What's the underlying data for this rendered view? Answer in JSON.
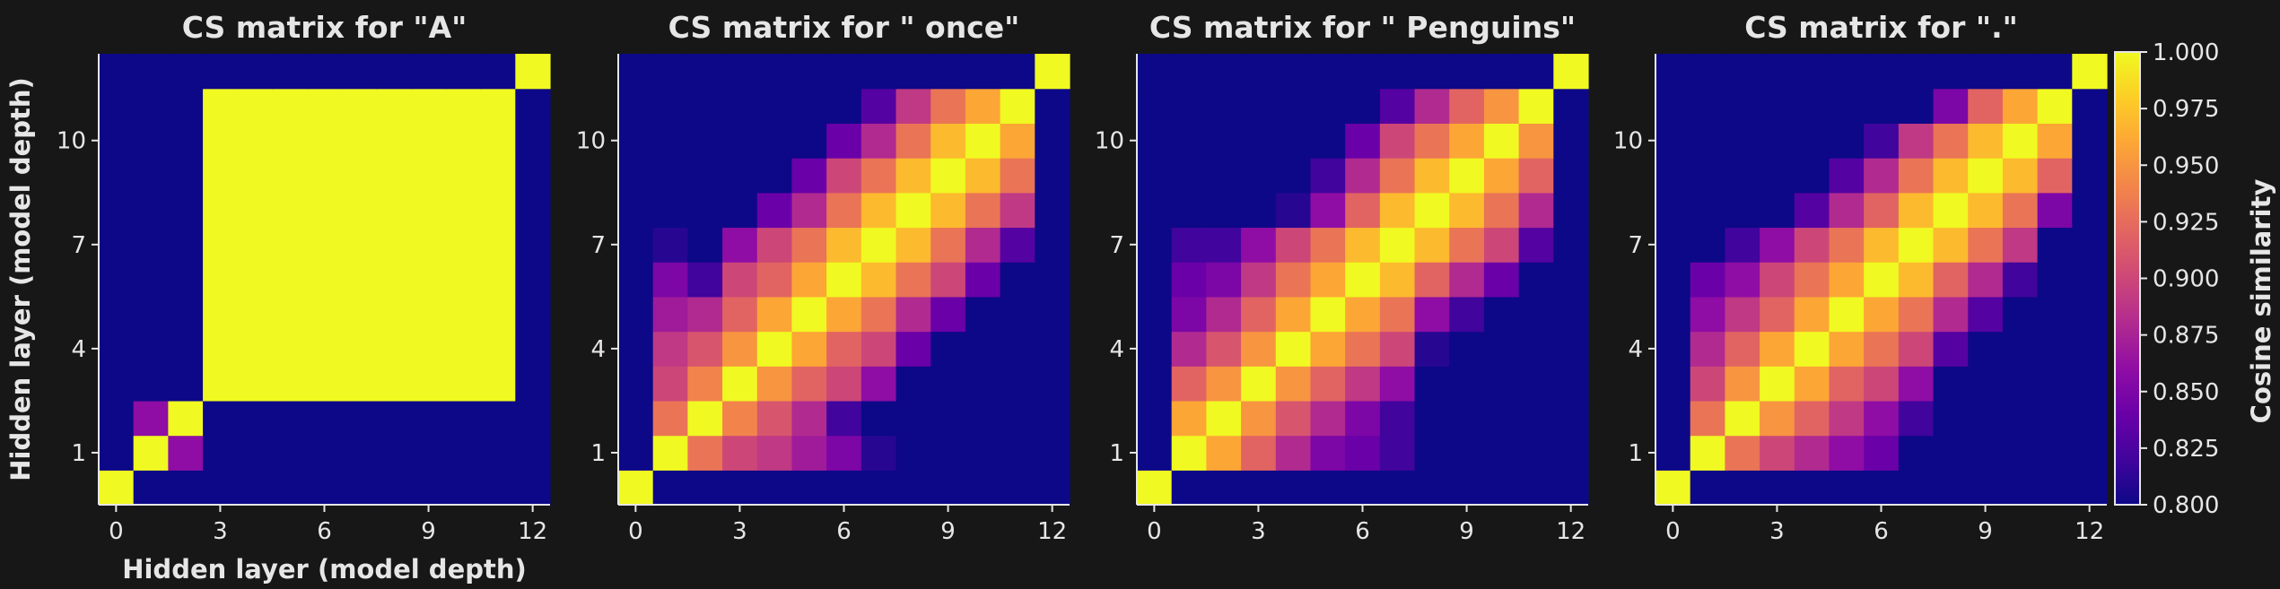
{
  "chart_data": [
    {
      "type": "heatmap",
      "title": "CS matrix for \"A\"",
      "xlabel": "Hidden layer (model depth)",
      "ylabel": "Hidden layer (model depth)",
      "layers": 13,
      "x_ticks": [
        0,
        3,
        6,
        9,
        12
      ],
      "y_ticks": [
        1,
        4,
        7,
        10
      ],
      "rows": [
        [
          1.0,
          0.8,
          0.8,
          0.8,
          0.8,
          0.8,
          0.8,
          0.8,
          0.8,
          0.8,
          0.8,
          0.8,
          0.8
        ],
        [
          0.8,
          1.0,
          0.86,
          0.8,
          0.8,
          0.8,
          0.8,
          0.8,
          0.8,
          0.8,
          0.8,
          0.8,
          0.8
        ],
        [
          0.8,
          0.86,
          1.0,
          0.8,
          0.8,
          0.8,
          0.8,
          0.8,
          0.8,
          0.8,
          0.8,
          0.8,
          0.8
        ],
        [
          0.8,
          0.8,
          0.8,
          1.0,
          1.0,
          1.0,
          1.0,
          1.0,
          1.0,
          1.0,
          1.0,
          1.0,
          0.8
        ],
        [
          0.8,
          0.8,
          0.8,
          1.0,
          1.0,
          1.0,
          1.0,
          1.0,
          1.0,
          1.0,
          1.0,
          1.0,
          0.8
        ],
        [
          0.8,
          0.8,
          0.8,
          1.0,
          1.0,
          1.0,
          1.0,
          1.0,
          1.0,
          1.0,
          1.0,
          1.0,
          0.8
        ],
        [
          0.8,
          0.8,
          0.8,
          1.0,
          1.0,
          1.0,
          1.0,
          1.0,
          1.0,
          1.0,
          1.0,
          1.0,
          0.8
        ],
        [
          0.8,
          0.8,
          0.8,
          1.0,
          1.0,
          1.0,
          1.0,
          1.0,
          1.0,
          1.0,
          1.0,
          1.0,
          0.8
        ],
        [
          0.8,
          0.8,
          0.8,
          1.0,
          1.0,
          1.0,
          1.0,
          1.0,
          1.0,
          1.0,
          1.0,
          1.0,
          0.8
        ],
        [
          0.8,
          0.8,
          0.8,
          1.0,
          1.0,
          1.0,
          1.0,
          1.0,
          1.0,
          1.0,
          1.0,
          1.0,
          0.8
        ],
        [
          0.8,
          0.8,
          0.8,
          1.0,
          1.0,
          1.0,
          1.0,
          1.0,
          1.0,
          1.0,
          1.0,
          1.0,
          0.8
        ],
        [
          0.8,
          0.8,
          0.8,
          1.0,
          1.0,
          1.0,
          1.0,
          1.0,
          1.0,
          1.0,
          1.0,
          1.0,
          0.8
        ],
        [
          0.8,
          0.8,
          0.8,
          0.8,
          0.8,
          0.8,
          0.8,
          0.8,
          0.8,
          0.8,
          0.8,
          0.8,
          1.0
        ]
      ]
    },
    {
      "type": "heatmap",
      "title": "CS matrix for \" once\"",
      "xlabel": "",
      "ylabel": "",
      "layers": 13,
      "x_ticks": [
        0,
        3,
        6,
        9,
        12
      ],
      "y_ticks": [
        1,
        4,
        7,
        10
      ],
      "rows": [
        [
          1.0,
          0.8,
          0.8,
          0.8,
          0.8,
          0.8,
          0.8,
          0.8,
          0.8,
          0.8,
          0.8,
          0.8,
          0.8
        ],
        [
          0.8,
          1.0,
          0.93,
          0.9,
          0.89,
          0.87,
          0.85,
          0.81,
          0.8,
          0.8,
          0.8,
          0.8,
          0.8
        ],
        [
          0.8,
          0.93,
          1.0,
          0.94,
          0.91,
          0.88,
          0.82,
          0.8,
          0.8,
          0.8,
          0.8,
          0.8,
          0.8
        ],
        [
          0.8,
          0.9,
          0.94,
          1.0,
          0.95,
          0.92,
          0.9,
          0.86,
          0.8,
          0.8,
          0.8,
          0.8,
          0.8
        ],
        [
          0.8,
          0.89,
          0.91,
          0.95,
          1.0,
          0.96,
          0.92,
          0.9,
          0.84,
          0.8,
          0.8,
          0.8,
          0.8
        ],
        [
          0.8,
          0.87,
          0.88,
          0.92,
          0.96,
          1.0,
          0.96,
          0.93,
          0.88,
          0.84,
          0.8,
          0.8,
          0.8
        ],
        [
          0.8,
          0.85,
          0.82,
          0.9,
          0.92,
          0.96,
          1.0,
          0.97,
          0.93,
          0.9,
          0.84,
          0.8,
          0.8
        ],
        [
          0.8,
          0.81,
          0.8,
          0.86,
          0.9,
          0.93,
          0.97,
          1.0,
          0.97,
          0.93,
          0.88,
          0.83,
          0.8
        ],
        [
          0.8,
          0.8,
          0.8,
          0.8,
          0.84,
          0.88,
          0.93,
          0.97,
          1.0,
          0.97,
          0.93,
          0.89,
          0.8
        ],
        [
          0.8,
          0.8,
          0.8,
          0.8,
          0.8,
          0.84,
          0.9,
          0.93,
          0.97,
          1.0,
          0.97,
          0.93,
          0.8
        ],
        [
          0.8,
          0.8,
          0.8,
          0.8,
          0.8,
          0.8,
          0.84,
          0.88,
          0.93,
          0.97,
          1.0,
          0.96,
          0.8
        ],
        [
          0.8,
          0.8,
          0.8,
          0.8,
          0.8,
          0.8,
          0.8,
          0.83,
          0.89,
          0.93,
          0.96,
          1.0,
          0.8
        ],
        [
          0.8,
          0.8,
          0.8,
          0.8,
          0.8,
          0.8,
          0.8,
          0.8,
          0.8,
          0.8,
          0.8,
          0.8,
          1.0
        ]
      ]
    },
    {
      "type": "heatmap",
      "title": "CS matrix for \" Penguins\"",
      "xlabel": "",
      "ylabel": "",
      "layers": 13,
      "x_ticks": [
        0,
        3,
        6,
        9,
        12
      ],
      "y_ticks": [
        1,
        4,
        7,
        10
      ],
      "rows": [
        [
          1.0,
          0.8,
          0.8,
          0.8,
          0.8,
          0.8,
          0.8,
          0.8,
          0.8,
          0.8,
          0.8,
          0.8,
          0.8
        ],
        [
          0.8,
          1.0,
          0.96,
          0.92,
          0.88,
          0.85,
          0.84,
          0.82,
          0.8,
          0.8,
          0.8,
          0.8,
          0.8
        ],
        [
          0.8,
          0.96,
          1.0,
          0.95,
          0.91,
          0.88,
          0.85,
          0.82,
          0.8,
          0.8,
          0.8,
          0.8,
          0.8
        ],
        [
          0.8,
          0.92,
          0.95,
          1.0,
          0.95,
          0.92,
          0.89,
          0.86,
          0.8,
          0.8,
          0.8,
          0.8,
          0.8
        ],
        [
          0.8,
          0.88,
          0.91,
          0.95,
          1.0,
          0.96,
          0.93,
          0.9,
          0.81,
          0.8,
          0.8,
          0.8,
          0.8
        ],
        [
          0.8,
          0.85,
          0.88,
          0.92,
          0.96,
          1.0,
          0.96,
          0.93,
          0.86,
          0.82,
          0.8,
          0.8,
          0.8
        ],
        [
          0.8,
          0.84,
          0.85,
          0.89,
          0.93,
          0.96,
          1.0,
          0.97,
          0.92,
          0.88,
          0.84,
          0.8,
          0.8
        ],
        [
          0.8,
          0.82,
          0.82,
          0.86,
          0.9,
          0.93,
          0.97,
          1.0,
          0.97,
          0.93,
          0.9,
          0.83,
          0.8
        ],
        [
          0.8,
          0.8,
          0.8,
          0.8,
          0.81,
          0.86,
          0.92,
          0.97,
          1.0,
          0.97,
          0.93,
          0.88,
          0.8
        ],
        [
          0.8,
          0.8,
          0.8,
          0.8,
          0.8,
          0.82,
          0.88,
          0.93,
          0.97,
          1.0,
          0.96,
          0.92,
          0.8
        ],
        [
          0.8,
          0.8,
          0.8,
          0.8,
          0.8,
          0.8,
          0.84,
          0.9,
          0.93,
          0.96,
          1.0,
          0.95,
          0.8
        ],
        [
          0.8,
          0.8,
          0.8,
          0.8,
          0.8,
          0.8,
          0.8,
          0.83,
          0.88,
          0.92,
          0.95,
          1.0,
          0.8
        ],
        [
          0.8,
          0.8,
          0.8,
          0.8,
          0.8,
          0.8,
          0.8,
          0.8,
          0.8,
          0.8,
          0.8,
          0.8,
          1.0
        ]
      ]
    },
    {
      "type": "heatmap",
      "title": "CS matrix for \".\"",
      "xlabel": "",
      "ylabel": "",
      "layers": 13,
      "x_ticks": [
        0,
        3,
        6,
        9,
        12
      ],
      "y_ticks": [
        1,
        4,
        7,
        10
      ],
      "rows": [
        [
          1.0,
          0.8,
          0.8,
          0.8,
          0.8,
          0.8,
          0.8,
          0.8,
          0.8,
          0.8,
          0.8,
          0.8,
          0.8
        ],
        [
          0.8,
          1.0,
          0.93,
          0.9,
          0.88,
          0.86,
          0.84,
          0.8,
          0.8,
          0.8,
          0.8,
          0.8,
          0.8
        ],
        [
          0.8,
          0.93,
          1.0,
          0.95,
          0.92,
          0.89,
          0.86,
          0.82,
          0.8,
          0.8,
          0.8,
          0.8,
          0.8
        ],
        [
          0.8,
          0.9,
          0.95,
          1.0,
          0.96,
          0.92,
          0.9,
          0.86,
          0.8,
          0.8,
          0.8,
          0.8,
          0.8
        ],
        [
          0.8,
          0.88,
          0.92,
          0.96,
          1.0,
          0.96,
          0.93,
          0.9,
          0.83,
          0.8,
          0.8,
          0.8,
          0.8
        ],
        [
          0.8,
          0.86,
          0.89,
          0.92,
          0.96,
          1.0,
          0.96,
          0.93,
          0.88,
          0.83,
          0.8,
          0.8,
          0.8
        ],
        [
          0.8,
          0.84,
          0.86,
          0.9,
          0.93,
          0.96,
          1.0,
          0.97,
          0.92,
          0.88,
          0.82,
          0.8,
          0.8
        ],
        [
          0.8,
          0.8,
          0.82,
          0.86,
          0.9,
          0.93,
          0.97,
          1.0,
          0.97,
          0.93,
          0.89,
          0.8,
          0.8
        ],
        [
          0.8,
          0.8,
          0.8,
          0.8,
          0.83,
          0.88,
          0.92,
          0.97,
          1.0,
          0.97,
          0.93,
          0.85,
          0.8
        ],
        [
          0.8,
          0.8,
          0.8,
          0.8,
          0.8,
          0.83,
          0.88,
          0.93,
          0.97,
          1.0,
          0.97,
          0.92,
          0.8
        ],
        [
          0.8,
          0.8,
          0.8,
          0.8,
          0.8,
          0.8,
          0.82,
          0.89,
          0.93,
          0.97,
          1.0,
          0.96,
          0.8
        ],
        [
          0.8,
          0.8,
          0.8,
          0.8,
          0.8,
          0.8,
          0.8,
          0.8,
          0.85,
          0.92,
          0.96,
          1.0,
          0.8
        ],
        [
          0.8,
          0.8,
          0.8,
          0.8,
          0.8,
          0.8,
          0.8,
          0.8,
          0.8,
          0.8,
          0.8,
          0.8,
          1.0
        ]
      ]
    }
  ],
  "colorbar": {
    "label": "Cosine similarity",
    "range": [
      0.8,
      1.0
    ],
    "colormap": "plasma",
    "ticks": [
      "0.800",
      "0.825",
      "0.850",
      "0.875",
      "0.900",
      "0.925",
      "0.950",
      "0.975",
      "1.000"
    ]
  },
  "colors": {
    "background": "#171717",
    "text": "#e6e6e6"
  }
}
